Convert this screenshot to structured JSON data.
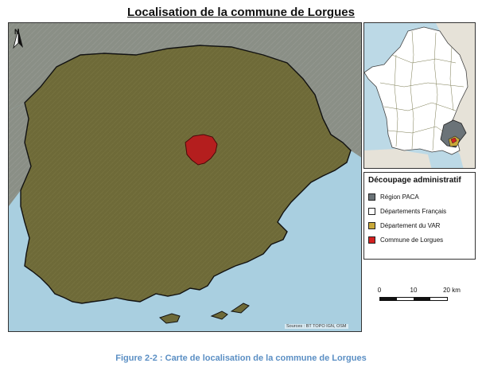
{
  "title": "Localisation de la commune de Lorgues",
  "north_label": "N",
  "sources": "Sources : BT TOPO IGN, OSM",
  "legend": {
    "title": "Découpage administratif",
    "items": [
      {
        "label": "Région PACA",
        "color": "#6b7378"
      },
      {
        "label": "Départements Français",
        "color": "#ffffff"
      },
      {
        "label": "Département du VAR",
        "color": "#c9a93a"
      },
      {
        "label": "Commune de Lorgues",
        "color": "#d42020"
      }
    ]
  },
  "scale": {
    "ticks": [
      "0",
      "10",
      "20 km"
    ]
  },
  "caption": "Figure 2-2 : Carte de localisation de la commune de Lorgues",
  "colors": {
    "sea": "#a9cfe0",
    "land_outside": "#8a8f86",
    "var_department": "#6e6a38",
    "commune": "#b41e1e",
    "caption": "#5b8fc4"
  }
}
